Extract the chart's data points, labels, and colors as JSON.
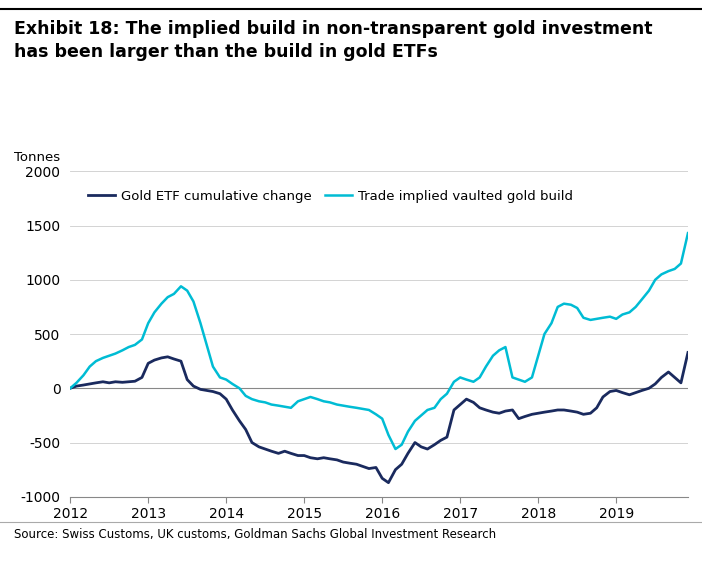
{
  "title_line1": "Exhibit 18: The implied build in non-transparent gold investment",
  "title_line2": "has been larger than the build in gold ETFs",
  "ylabel": "Tonnes",
  "source": "Source: Swiss Customs, UK customs, Goldman Sachs Global Investment Research",
  "ylim": [
    -1000,
    2000
  ],
  "yticks": [
    -1000,
    -500,
    0,
    500,
    1000,
    1500,
    2000
  ],
  "xlim": [
    2012,
    2019.92
  ],
  "xticks": [
    2012,
    2013,
    2014,
    2015,
    2016,
    2017,
    2018,
    2019
  ],
  "legend": [
    "Gold ETF cumulative change",
    "Trade implied vaulted gold build"
  ],
  "etf_color": "#1a2a5e",
  "trade_color": "#00bcd4",
  "etf_x": [
    2012.0,
    2012.08,
    2012.17,
    2012.25,
    2012.33,
    2012.42,
    2012.5,
    2012.58,
    2012.67,
    2012.75,
    2012.83,
    2012.92,
    2013.0,
    2013.08,
    2013.17,
    2013.25,
    2013.33,
    2013.42,
    2013.5,
    2013.58,
    2013.67,
    2013.75,
    2013.83,
    2013.92,
    2014.0,
    2014.08,
    2014.17,
    2014.25,
    2014.33,
    2014.42,
    2014.5,
    2014.58,
    2014.67,
    2014.75,
    2014.83,
    2014.92,
    2015.0,
    2015.08,
    2015.17,
    2015.25,
    2015.33,
    2015.42,
    2015.5,
    2015.58,
    2015.67,
    2015.75,
    2015.83,
    2015.92,
    2016.0,
    2016.08,
    2016.17,
    2016.25,
    2016.33,
    2016.42,
    2016.5,
    2016.58,
    2016.67,
    2016.75,
    2016.83,
    2016.92,
    2017.0,
    2017.08,
    2017.17,
    2017.25,
    2017.33,
    2017.42,
    2017.5,
    2017.58,
    2017.67,
    2017.75,
    2017.83,
    2017.92,
    2018.0,
    2018.08,
    2018.17,
    2018.25,
    2018.33,
    2018.42,
    2018.5,
    2018.58,
    2018.67,
    2018.75,
    2018.83,
    2018.92,
    2019.0,
    2019.08,
    2019.17,
    2019.25,
    2019.33,
    2019.42,
    2019.5,
    2019.58,
    2019.67,
    2019.75,
    2019.83,
    2019.92
  ],
  "etf_y": [
    0,
    20,
    30,
    40,
    50,
    60,
    50,
    60,
    55,
    60,
    65,
    100,
    230,
    260,
    280,
    290,
    270,
    250,
    80,
    20,
    -10,
    -20,
    -30,
    -50,
    -100,
    -200,
    -300,
    -380,
    -500,
    -540,
    -560,
    -580,
    -600,
    -580,
    -600,
    -620,
    -620,
    -640,
    -650,
    -640,
    -650,
    -660,
    -680,
    -690,
    -700,
    -720,
    -740,
    -730,
    -830,
    -870,
    -750,
    -700,
    -600,
    -500,
    -540,
    -560,
    -520,
    -480,
    -450,
    -200,
    -150,
    -100,
    -130,
    -180,
    -200,
    -220,
    -230,
    -210,
    -200,
    -280,
    -260,
    -240,
    -230,
    -220,
    -210,
    -200,
    -200,
    -210,
    -220,
    -240,
    -230,
    -180,
    -80,
    -30,
    -20,
    -40,
    -60,
    -40,
    -20,
    0,
    40,
    100,
    150,
    100,
    50,
    330
  ],
  "trade_x": [
    2012.0,
    2012.08,
    2012.17,
    2012.25,
    2012.33,
    2012.42,
    2012.5,
    2012.58,
    2012.67,
    2012.75,
    2012.83,
    2012.92,
    2013.0,
    2013.08,
    2013.17,
    2013.25,
    2013.33,
    2013.42,
    2013.5,
    2013.58,
    2013.67,
    2013.75,
    2013.83,
    2013.92,
    2014.0,
    2014.08,
    2014.17,
    2014.25,
    2014.33,
    2014.42,
    2014.5,
    2014.58,
    2014.67,
    2014.75,
    2014.83,
    2014.92,
    2015.0,
    2015.08,
    2015.17,
    2015.25,
    2015.33,
    2015.42,
    2015.5,
    2015.58,
    2015.67,
    2015.75,
    2015.83,
    2015.92,
    2016.0,
    2016.08,
    2016.17,
    2016.25,
    2016.33,
    2016.42,
    2016.5,
    2016.58,
    2016.67,
    2016.75,
    2016.83,
    2016.92,
    2017.0,
    2017.08,
    2017.17,
    2017.25,
    2017.33,
    2017.42,
    2017.5,
    2017.58,
    2017.67,
    2017.75,
    2017.83,
    2017.92,
    2018.0,
    2018.08,
    2018.17,
    2018.25,
    2018.33,
    2018.42,
    2018.5,
    2018.58,
    2018.67,
    2018.75,
    2018.83,
    2018.92,
    2019.0,
    2019.08,
    2019.17,
    2019.25,
    2019.33,
    2019.42,
    2019.5,
    2019.58,
    2019.67,
    2019.75,
    2019.83,
    2019.92
  ],
  "trade_y": [
    0,
    50,
    120,
    200,
    250,
    280,
    300,
    320,
    350,
    380,
    400,
    450,
    600,
    700,
    780,
    840,
    870,
    940,
    900,
    800,
    600,
    400,
    200,
    100,
    80,
    40,
    0,
    -70,
    -100,
    -120,
    -130,
    -150,
    -160,
    -170,
    -180,
    -120,
    -100,
    -80,
    -100,
    -120,
    -130,
    -150,
    -160,
    -170,
    -180,
    -190,
    -200,
    -240,
    -280,
    -430,
    -560,
    -520,
    -400,
    -300,
    -250,
    -200,
    -180,
    -100,
    -50,
    60,
    100,
    80,
    60,
    100,
    200,
    300,
    350,
    380,
    100,
    80,
    60,
    100,
    300,
    500,
    600,
    750,
    780,
    770,
    740,
    650,
    630,
    640,
    650,
    660,
    640,
    680,
    700,
    750,
    820,
    900,
    1000,
    1050,
    1080,
    1100,
    1150,
    1430
  ]
}
